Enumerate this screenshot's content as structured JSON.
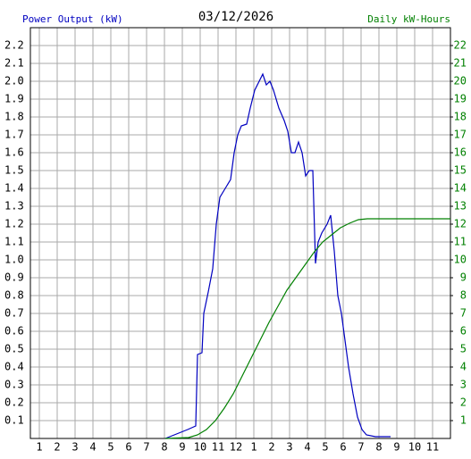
{
  "chart_data": {
    "type": "line",
    "title": "03/12/2026",
    "ylabel": "Power Output (kW)",
    "y2label": "Daily kW-Hours",
    "xlim": [
      0.5,
      24
    ],
    "xticks": [
      1,
      2,
      3,
      4,
      5,
      6,
      7,
      8,
      9,
      10,
      11,
      12,
      {
        "value": 13,
        "label": "1"
      },
      {
        "value": 14,
        "label": "2"
      },
      {
        "value": 15,
        "label": "3"
      },
      {
        "value": 16,
        "label": "4"
      },
      {
        "value": 17,
        "label": "5"
      },
      {
        "value": 18,
        "label": "6"
      },
      {
        "value": 19,
        "label": "7"
      },
      {
        "value": 20,
        "label": "8"
      },
      {
        "value": 21,
        "label": "9"
      },
      {
        "value": 22,
        "label": "10"
      },
      {
        "value": 23,
        "label": "11"
      }
    ],
    "ylim": [
      0,
      2.3
    ],
    "yticks": [
      0.1,
      0.2,
      0.3,
      0.4,
      0.5,
      0.6,
      0.7,
      0.8,
      0.9,
      {
        "value": 1.0,
        "label": "1.0"
      },
      1.1,
      1.2,
      1.3,
      1.4,
      1.5,
      1.6,
      1.7,
      1.8,
      1.9,
      {
        "value": 2.0,
        "label": "2.0"
      },
      2.1,
      2.2
    ],
    "y2lim": [
      0,
      23
    ],
    "y2ticks": [
      1,
      2,
      3,
      4,
      5,
      6,
      7,
      8,
      9,
      10,
      11,
      12,
      13,
      14,
      15,
      16,
      17,
      18,
      19,
      20,
      21,
      22
    ],
    "grid": true,
    "series": [
      {
        "name": "Power Output (kW)",
        "color": "#0000c0",
        "x": [
          8.05,
          8.3,
          8.8,
          9.3,
          9.75,
          9.85,
          10.1,
          10.2,
          10.45,
          10.7,
          10.9,
          11.1,
          11.4,
          11.7,
          11.9,
          12.1,
          12.3,
          12.6,
          12.8,
          13.05,
          13.3,
          13.5,
          13.7,
          13.9,
          14.1,
          14.4,
          14.7,
          14.9,
          15.1,
          15.3,
          15.5,
          15.7,
          15.9,
          16.1,
          16.3,
          16.45,
          16.6,
          16.8,
          17.1,
          17.3,
          17.5,
          17.7,
          17.9,
          18.1,
          18.3,
          18.55,
          18.8,
          19.05,
          19.3,
          19.8,
          20.65
        ],
        "values": [
          0,
          0.01,
          0.03,
          0.05,
          0.07,
          0.47,
          0.48,
          0.7,
          0.82,
          0.95,
          1.2,
          1.35,
          1.4,
          1.45,
          1.6,
          1.7,
          1.75,
          1.76,
          1.85,
          1.95,
          2.0,
          2.04,
          1.98,
          2.0,
          1.95,
          1.85,
          1.78,
          1.72,
          1.6,
          1.6,
          1.66,
          1.6,
          1.47,
          1.5,
          1.5,
          0.98,
          1.1,
          1.15,
          1.2,
          1.25,
          1.05,
          0.8,
          0.7,
          0.55,
          0.4,
          0.25,
          0.12,
          0.05,
          0.02,
          0.01,
          0.01
        ]
      },
      {
        "name": "Daily kW-Hours",
        "color": "#008000",
        "axis": "y2",
        "x": [
          8.05,
          9.35,
          9.85,
          10.35,
          10.85,
          11.35,
          11.85,
          12.35,
          12.85,
          13.35,
          13.85,
          14.35,
          14.85,
          15.35,
          15.85,
          16.35,
          16.85,
          17.35,
          17.85,
          18.35,
          18.85,
          19.35,
          19.85,
          24
        ],
        "values": [
          0,
          0.05,
          0.2,
          0.5,
          1.0,
          1.7,
          2.5,
          3.5,
          4.5,
          5.5,
          6.5,
          7.4,
          8.3,
          9.0,
          9.7,
          10.4,
          11.0,
          11.4,
          11.8,
          12.05,
          12.25,
          12.3,
          12.3,
          12.3
        ]
      }
    ]
  }
}
